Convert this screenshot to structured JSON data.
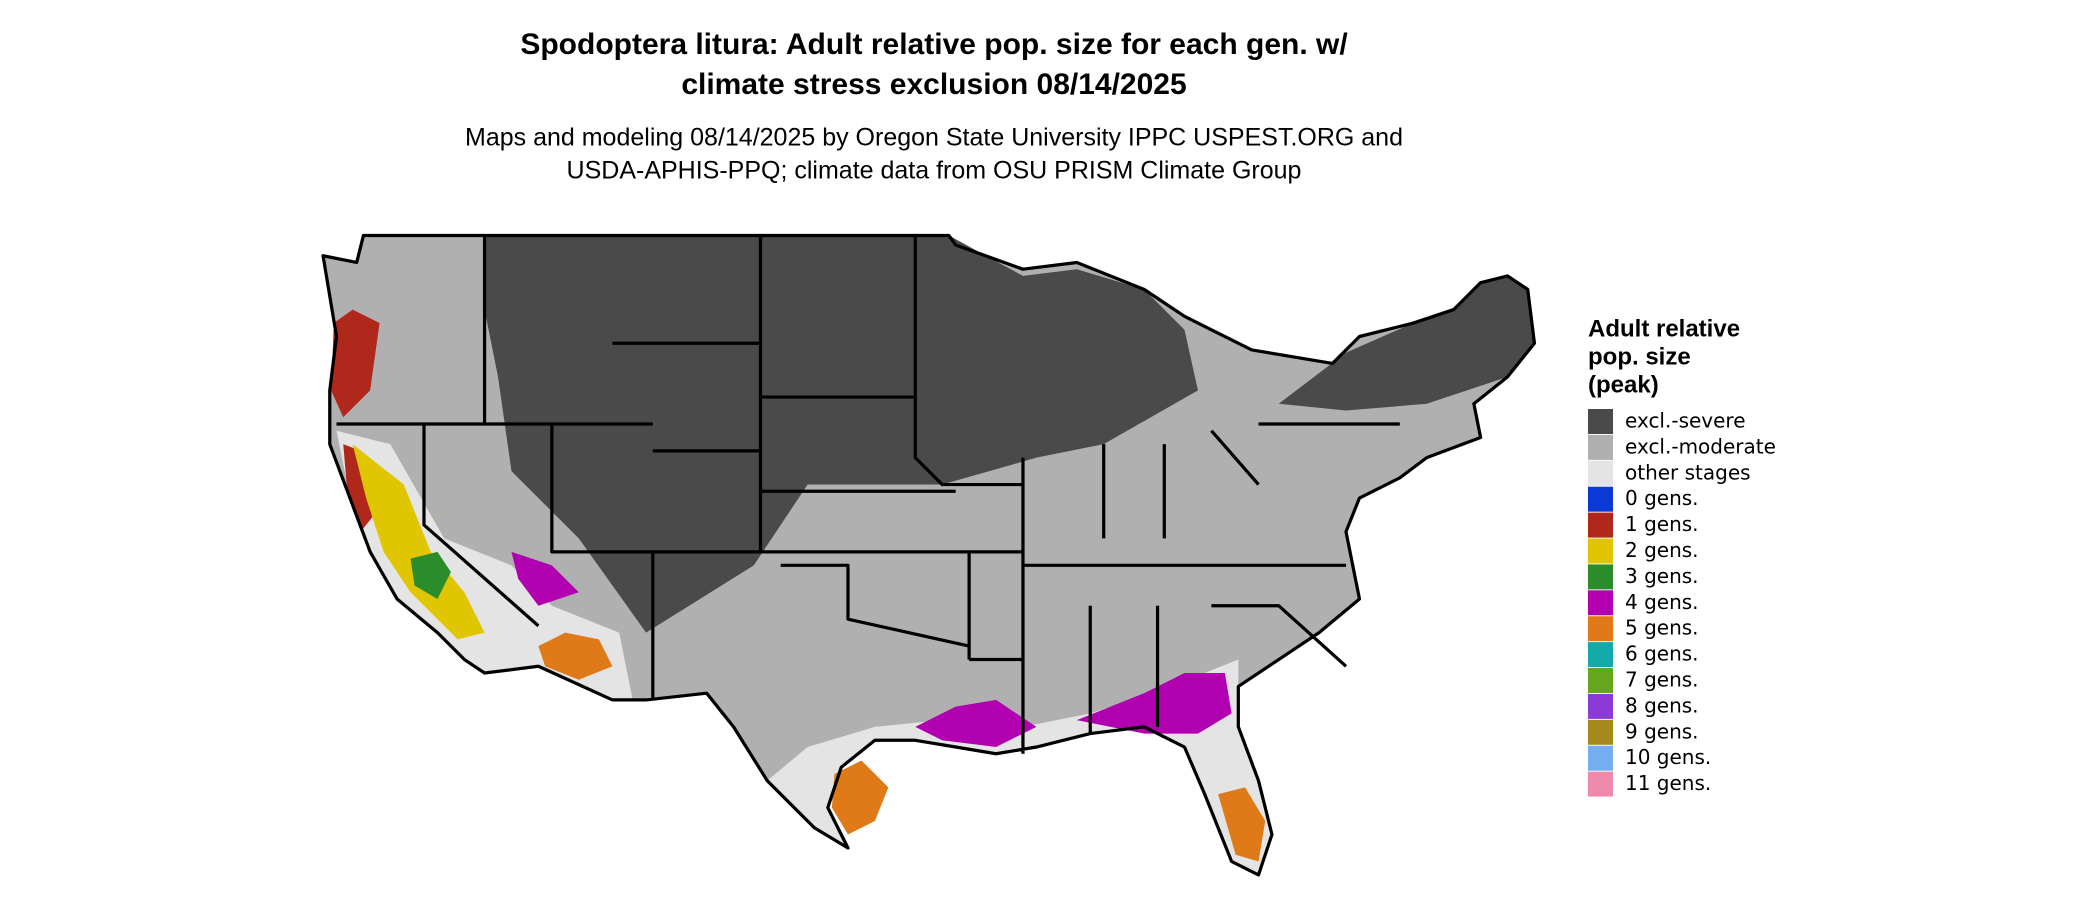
{
  "title": [
    "Spodoptera litura: Adult relative pop. size for each gen. w/",
    "climate stress exclusion 08/14/2025"
  ],
  "subtitle": [
    "Maps and modeling 08/14/2025 by Oregon State University IPPC USPEST.ORG and",
    "USDA-APHIS-PPQ; climate data from OSU PRISM Climate Group"
  ],
  "legend": {
    "title": [
      "Adult relative",
      "pop. size",
      "(peak)"
    ],
    "items": [
      {
        "label": "excl.-severe",
        "color": "#4a4a4a"
      },
      {
        "label": "excl.-moderate",
        "color": "#b0b0b0"
      },
      {
        "label": "other stages",
        "color": "#e4e4e4"
      },
      {
        "label": "0 gens.",
        "color": "#0a3ad6"
      },
      {
        "label": "1 gens.",
        "color": "#b0281c"
      },
      {
        "label": "2 gens.",
        "color": "#e0c600"
      },
      {
        "label": "3 gens.",
        "color": "#2a8c2a"
      },
      {
        "label": "4 gens.",
        "color": "#b000b0"
      },
      {
        "label": "5 gens.",
        "color": "#e07a18"
      },
      {
        "label": "6 gens.",
        "color": "#14aaaa"
      },
      {
        "label": "7 gens.",
        "color": "#66a61e"
      },
      {
        "label": "8 gens.",
        "color": "#8a3ad6"
      },
      {
        "label": "9 gens.",
        "color": "#a68a1e"
      },
      {
        "label": "10 gens.",
        "color": "#74aef0"
      },
      {
        "label": "11 gens.",
        "color": "#f08aaa"
      }
    ]
  }
}
